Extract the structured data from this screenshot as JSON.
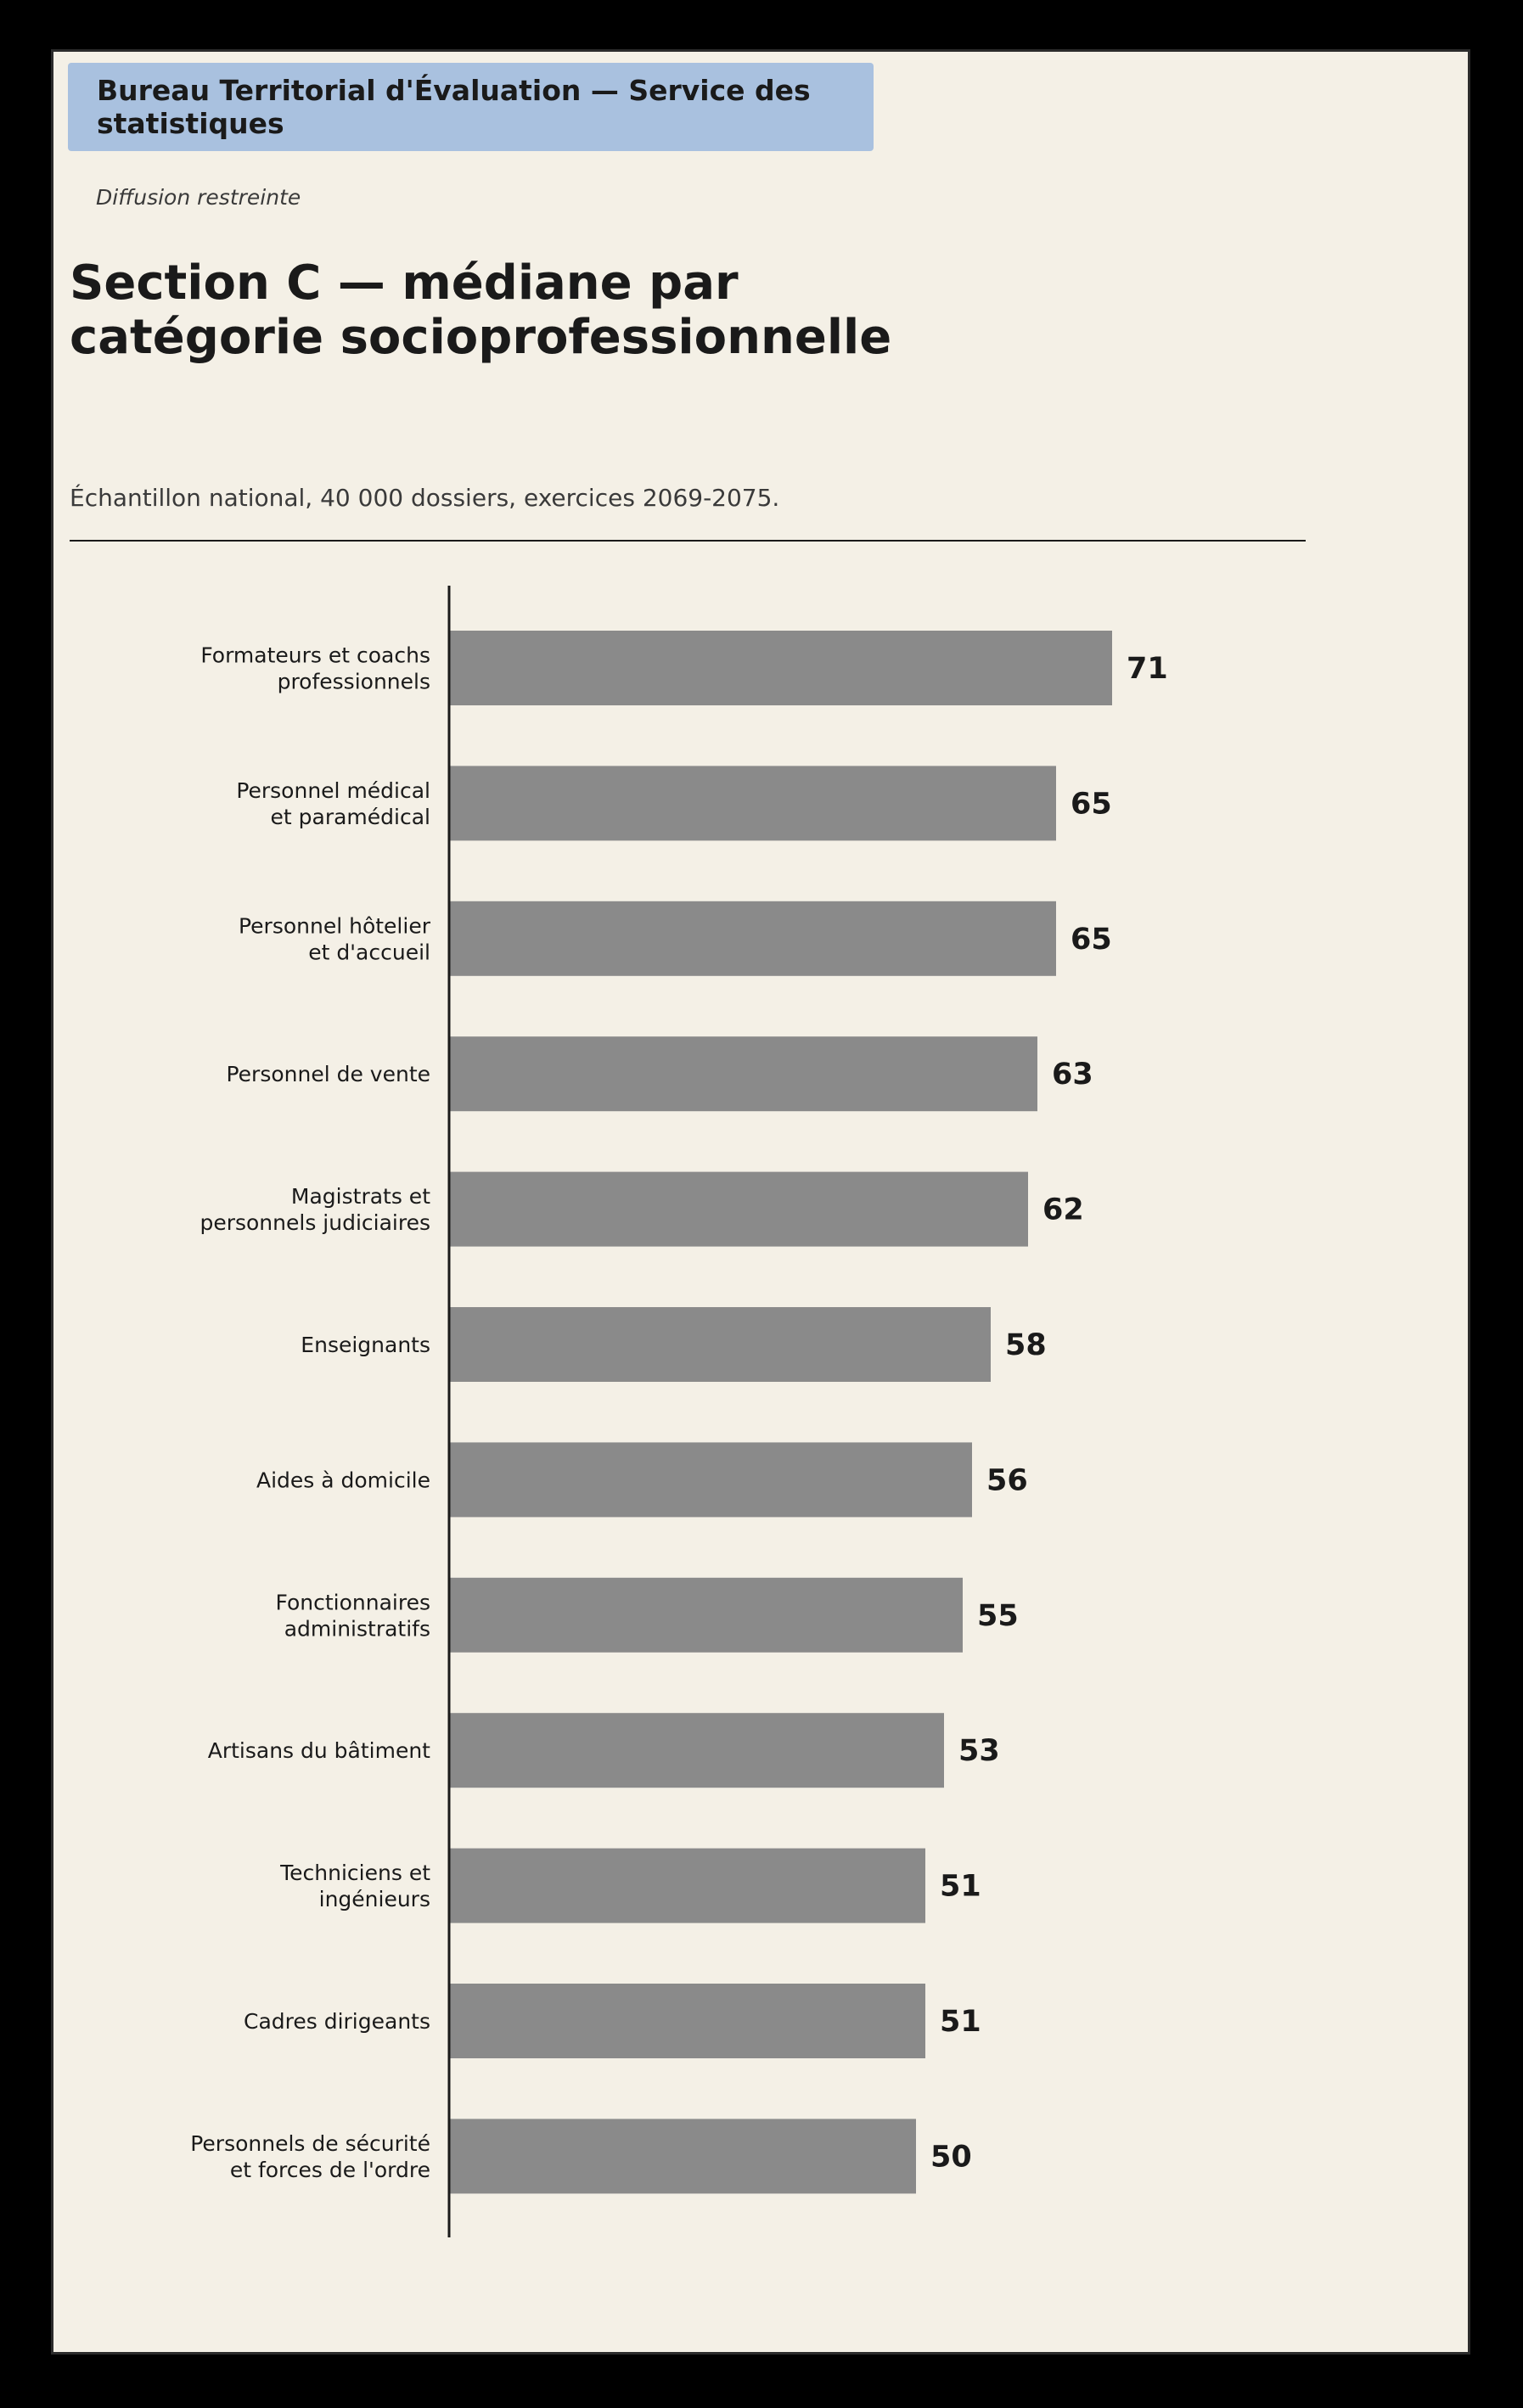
{
  "header": {
    "banner": "Bureau Territorial d'Évaluation — Service des statistiques",
    "distribution": "Diffusion restreinte"
  },
  "title_lines": [
    "Section C — médiane par",
    "catégorie socioprofessionnelle"
  ],
  "subtitle": "Échantillon national, 40 000 dossiers, exercices 2069-2075.",
  "colors": {
    "page_background": "#f4f0e6",
    "banner": "#a9c1df",
    "bar": "#8a8a8a",
    "text": "#1a1a1a"
  },
  "chart_data": {
    "type": "bar",
    "orientation": "horizontal",
    "title": "Section C — médiane par catégorie socioprofessionnelle",
    "subtitle": "Échantillon national, 40 000 dossiers, exercices 2069-2075.",
    "xlabel": "",
    "ylabel": "",
    "grid": false,
    "legend": "none",
    "categories": [
      [
        "Formateurs et coachs",
        "professionnels"
      ],
      [
        "Personnel médical",
        "et paramédical"
      ],
      [
        "Personnel hôtelier",
        "et d'accueil"
      ],
      [
        "Personnel de vente"
      ],
      [
        "Magistrats et",
        "personnels judiciaires"
      ],
      [
        "Enseignants"
      ],
      [
        "Aides à domicile"
      ],
      [
        "Fonctionnaires",
        "administratifs"
      ],
      [
        "Artisans du bâtiment"
      ],
      [
        "Techniciens et",
        "ingénieurs"
      ],
      [
        "Cadres dirigeants"
      ],
      [
        "Personnels de sécurité",
        "et forces de l'ordre"
      ]
    ],
    "values": [
      71,
      65,
      65,
      63,
      62,
      58,
      56,
      55,
      53,
      51,
      51,
      50
    ],
    "xlim": [
      0,
      100
    ]
  }
}
